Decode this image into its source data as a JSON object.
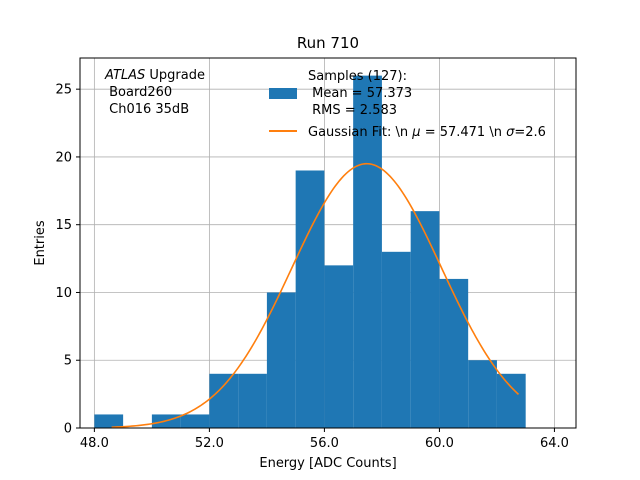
{
  "chart_data": {
    "type": "histogram",
    "title": "Run 710",
    "xlabel": "Energy [ADC Counts]",
    "ylabel": "Entries",
    "xlim": [
      47.5,
      64.75
    ],
    "ylim": [
      0,
      27.3
    ],
    "xticks": [
      48.0,
      52.0,
      56.0,
      60.0,
      64.0
    ],
    "xtick_labels": [
      "48.0",
      "52.0",
      "56.0",
      "60.0",
      "64.0"
    ],
    "yticks": [
      0,
      5,
      10,
      15,
      20,
      25
    ],
    "ytick_labels": [
      "0",
      "5",
      "10",
      "15",
      "20",
      "25"
    ],
    "grid": true,
    "bin_edges": [
      48,
      49,
      50,
      51,
      52,
      53,
      54,
      55,
      56,
      57,
      58,
      59,
      60,
      61,
      62,
      63
    ],
    "counts": [
      1,
      0,
      1,
      1,
      4,
      4,
      10,
      19,
      12,
      26,
      13,
      16,
      11,
      5,
      4
    ],
    "bar_color": "#1f77b4",
    "fit": {
      "name": "Gaussian Fit",
      "mu": 57.471,
      "sigma": 2.6,
      "amplitude": 19.5,
      "x_range": [
        48.6,
        62.75
      ],
      "color": "#ff7f0e"
    },
    "legend": {
      "placement": "top-right",
      "samples_entry": [
        "Samples (127):",
        " Mean = 57.373",
        " RMS = 2.583"
      ],
      "fit_entry_prefix": "Gaussian Fit: \\n ",
      "fit_entry_mu": " = 57.471 \\n ",
      "fit_entry_sigma": "=2.6",
      "mu_symbol": "μ",
      "sigma_symbol": "σ"
    },
    "annotation": {
      "placement": "top-left",
      "italic_word": "ATLAS",
      "word2": " Upgrade",
      "line2": " Board260",
      "line3": " Ch016 35dB"
    }
  }
}
